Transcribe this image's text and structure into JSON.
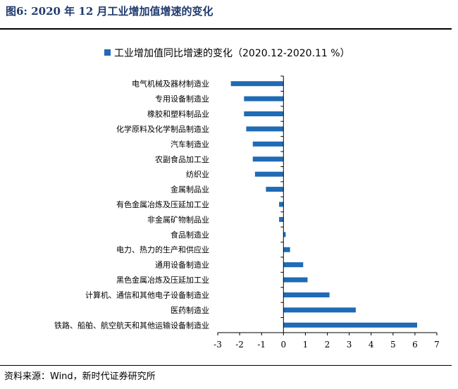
{
  "figure": {
    "title": "图6:  2020 年 12 月工业增加值增速的变化",
    "source": "资料来源：Wind，新时代证券研究所"
  },
  "colors": {
    "bar": "#1f6bb5",
    "title": "#1f3b6e",
    "axis": "#000000"
  },
  "chart_data": {
    "type": "bar",
    "orientation": "horizontal",
    "title": "",
    "xlabel": "",
    "ylabel": "",
    "xlim": [
      -3,
      7
    ],
    "xticks": [
      -3,
      -2,
      -1,
      0,
      1,
      2,
      3,
      4,
      5,
      6,
      7
    ],
    "grid": false,
    "legend_position": "top-center",
    "series": [
      {
        "name": "工业增加值同比增速的变化（2020.12-2020.11 %）"
      }
    ],
    "categories": [
      "电气机械及器材制造业",
      "专用设备制造业",
      "橡胶和塑料制品业",
      "化学原料及化学制品制造业",
      "汽车制造业",
      "农副食品加工业",
      "纺织业",
      "金属制品业",
      "有色金属冶炼及压延加工业",
      "非金属矿物制品业",
      "食品制造业",
      "电力、热力的生产和供应业",
      "通用设备制造业",
      "黑色金属冶炼及压延加工业",
      "计算机、通信和其他电子设备制造业",
      "医药制造业",
      "铁路、船舶、航空航天和其他运输设备制造业"
    ],
    "values": [
      -2.4,
      -1.8,
      -1.8,
      -1.7,
      -1.4,
      -1.4,
      -1.3,
      -0.8,
      -0.2,
      -0.2,
      0.1,
      0.3,
      0.9,
      1.1,
      2.1,
      3.3,
      6.1
    ]
  }
}
